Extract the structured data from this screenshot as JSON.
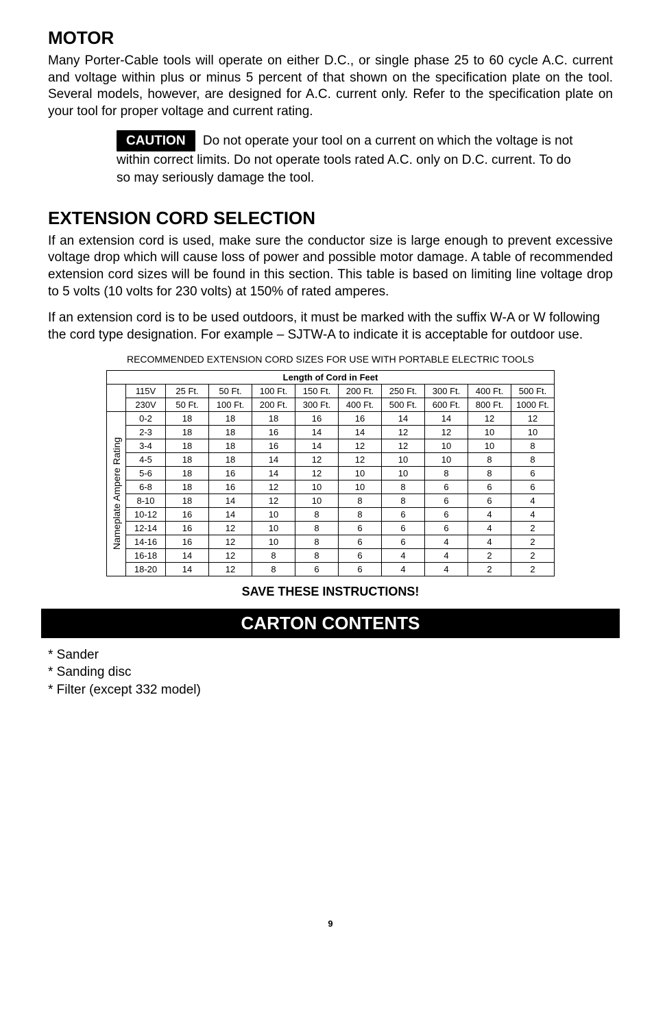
{
  "motor": {
    "title": "MOTOR",
    "body": "Many Porter-Cable tools will operate on either D.C., or single phase 25 to 60 cycle A.C. current and voltage within plus or minus 5 percent of that shown on the specification plate on the tool. Several models, however, are designed for A.C. current only. Refer to the specification plate on your tool for proper voltage and current rating.",
    "caution_label": "CAUTION",
    "caution_text": "Do not operate your tool on a current on which the voltage is not within correct limits. Do not operate tools rated A.C. only on D.C. current. To do so may seriously damage the tool."
  },
  "ext": {
    "title": "EXTENSION CORD SELECTION",
    "p1": "If an extension cord is used, make sure the conductor size is large enough to prevent excessive voltage drop which will cause loss of power and possible motor damage. A table of recommended extension cord sizes will be found in this section. This table is based on limiting line voltage drop to 5 volts (10 volts for 230 volts) at 150% of rated amperes.",
    "p2": "If an extension cord is to be used outdoors, it must be marked with the suffix W-A or W following the cord type designation. For example – SJTW-A to indicate it is acceptable for outdoor use.",
    "table_caption": "RECOMMENDED EXTENSION CORD SIZES FOR USE WITH PORTABLE ELECTRIC TOOLS"
  },
  "table": {
    "length_header": "Length of Cord in Feet",
    "side_header": "Nameplate Ampere Rating",
    "volt_rows": [
      [
        "115V",
        "25 Ft.",
        "50 Ft.",
        "100 Ft.",
        "150 Ft.",
        "200 Ft.",
        "250 Ft.",
        "300 Ft.",
        "400 Ft.",
        "500 Ft."
      ],
      [
        "230V",
        "50 Ft.",
        "100 Ft.",
        "200 Ft.",
        "300 Ft.",
        "400 Ft.",
        "500 Ft.",
        "600 Ft.",
        "800 Ft.",
        "1000 Ft."
      ]
    ],
    "data_rows": [
      [
        "0-2",
        "18",
        "18",
        "18",
        "16",
        "16",
        "14",
        "14",
        "12",
        "12"
      ],
      [
        "2-3",
        "18",
        "18",
        "16",
        "14",
        "14",
        "12",
        "12",
        "10",
        "10"
      ],
      [
        "3-4",
        "18",
        "18",
        "16",
        "14",
        "12",
        "12",
        "10",
        "10",
        "8"
      ],
      [
        "4-5",
        "18",
        "18",
        "14",
        "12",
        "12",
        "10",
        "10",
        "8",
        "8"
      ],
      [
        "5-6",
        "18",
        "16",
        "14",
        "12",
        "10",
        "10",
        "8",
        "8",
        "6"
      ],
      [
        "6-8",
        "18",
        "16",
        "12",
        "10",
        "10",
        "8",
        "6",
        "6",
        "6"
      ],
      [
        "8-10",
        "18",
        "14",
        "12",
        "10",
        "8",
        "8",
        "6",
        "6",
        "4"
      ],
      [
        "10-12",
        "16",
        "14",
        "10",
        "8",
        "8",
        "6",
        "6",
        "4",
        "4"
      ],
      [
        "12-14",
        "16",
        "12",
        "10",
        "8",
        "6",
        "6",
        "6",
        "4",
        "2"
      ],
      [
        "14-16",
        "16",
        "12",
        "10",
        "8",
        "6",
        "6",
        "4",
        "4",
        "2"
      ],
      [
        "16-18",
        "14",
        "12",
        "8",
        "8",
        "6",
        "4",
        "4",
        "2",
        "2"
      ],
      [
        "18-20",
        "14",
        "12",
        "8",
        "6",
        "6",
        "4",
        "4",
        "2",
        "2"
      ]
    ]
  },
  "save": "SAVE THESE INSTRUCTIONS!",
  "carton": {
    "title": "CARTON CONTENTS",
    "items": [
      "* Sander",
      "* Sanding disc",
      "* Filter (except 332 model)"
    ]
  },
  "page_num": "9"
}
